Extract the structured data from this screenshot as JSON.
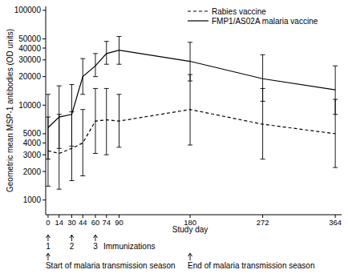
{
  "chart_data": {
    "type": "line",
    "x_label": "Study day",
    "y_label": "Geometric mean MSP-1 antibodies (OD units)",
    "x": [
      0,
      14,
      30,
      44,
      60,
      74,
      90,
      180,
      272,
      364
    ],
    "series": [
      {
        "name": "Rabies vaccine",
        "color": "#000000",
        "line_style": "dashed",
        "values": [
          3300,
          3100,
          3500,
          4000,
          6800,
          7000,
          6800,
          9000,
          6300,
          5000
        ],
        "lower": [
          1400,
          1300,
          1600,
          1800,
          3100,
          3000,
          3600,
          3800,
          2700,
          2200
        ],
        "upper": [
          7500,
          8000,
          8500,
          9000,
          15000,
          15000,
          13000,
          21000,
          15000,
          11500
        ]
      },
      {
        "name": "FMP1/AS02A malaria vaccine",
        "color": "#000000",
        "line_style": "solid",
        "values": [
          5800,
          7500,
          8000,
          20000,
          26000,
          35000,
          38000,
          29000,
          19000,
          14500
        ],
        "lower": [
          2700,
          3500,
          3700,
          13000,
          20000,
          27000,
          27000,
          18000,
          11000,
          8000
        ],
        "upper": [
          13000,
          16000,
          16500,
          31000,
          35000,
          47000,
          53000,
          46000,
          34000,
          26000
        ]
      }
    ],
    "xlim": [
      -3,
      372
    ],
    "xticks": [
      0,
      14,
      30,
      44,
      60,
      74,
      90,
      180,
      272,
      364
    ],
    "ylim": [
      700,
      110000
    ],
    "yticks": [
      1000,
      2000,
      3000,
      4000,
      5000,
      10000,
      20000,
      30000,
      40000,
      50000,
      100000
    ],
    "log": "y",
    "grid": false,
    "legend": "upper right",
    "annotations": [
      {
        "x": 0,
        "text": "1"
      },
      {
        "x": 30,
        "text": "2"
      },
      {
        "x": 60,
        "text": "3"
      },
      {
        "text": "Immunizations"
      },
      {
        "x": 0,
        "text": "Start of malaria transmission season"
      },
      {
        "x": 180,
        "text": "End of malaria transmission season"
      }
    ]
  }
}
